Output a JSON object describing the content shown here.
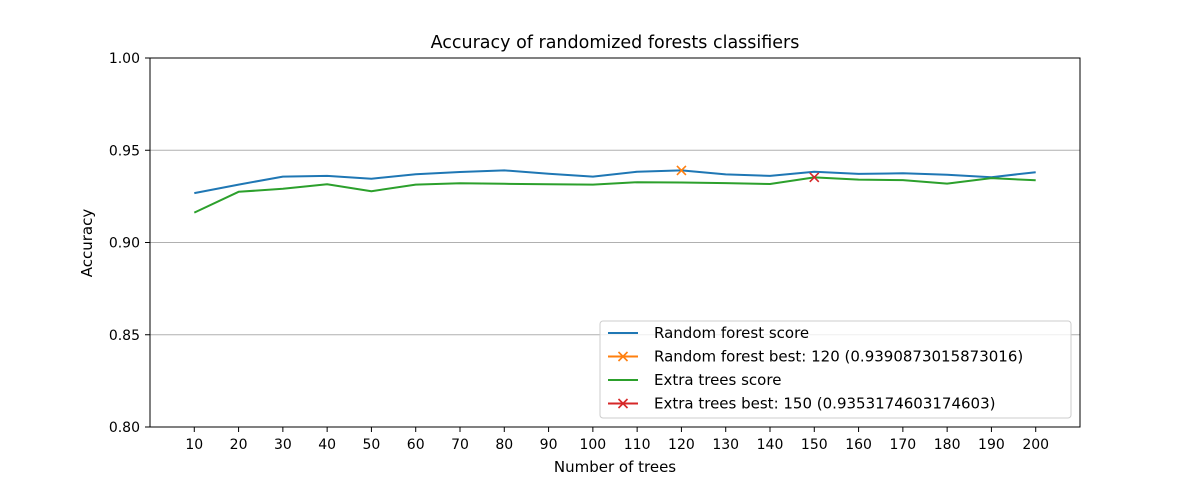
{
  "chart_data": {
    "type": "line",
    "title": "Accuracy of randomized forests classifiers",
    "xlabel": "Number of trees",
    "ylabel": "Accuracy",
    "x": [
      10,
      20,
      30,
      40,
      50,
      60,
      70,
      80,
      90,
      100,
      110,
      120,
      130,
      140,
      150,
      160,
      170,
      180,
      190,
      200
    ],
    "xlim": [
      0,
      210
    ],
    "ylim": [
      0.8,
      1.0
    ],
    "yticks": [
      "0.80",
      "0.85",
      "0.90",
      "0.95",
      "1.00"
    ],
    "grid": "horizontal",
    "legend_position": "lower-right",
    "series": [
      {
        "name": "Random forest score",
        "color": "#1f77b4",
        "values": [
          0.9268,
          0.9314,
          0.9357,
          0.9361,
          0.9346,
          0.937,
          0.9382,
          0.9391,
          0.9373,
          0.9357,
          0.9384,
          0.9391,
          0.9369,
          0.9361,
          0.9384,
          0.9372,
          0.9375,
          0.9367,
          0.9354,
          0.9381
        ]
      },
      {
        "name": "Extra trees score",
        "color": "#2ca02c",
        "values": [
          0.9162,
          0.9275,
          0.9291,
          0.9316,
          0.9278,
          0.9314,
          0.9321,
          0.9318,
          0.9316,
          0.9314,
          0.9327,
          0.9325,
          0.9322,
          0.9317,
          0.9353,
          0.9341,
          0.9338,
          0.9319,
          0.9349,
          0.9337
        ]
      }
    ],
    "markers": [
      {
        "name": "Random forest best: 120 (0.9390873015873016)",
        "x": 120,
        "y": 0.9390873015873016,
        "color": "#ff7f0e"
      },
      {
        "name": "Extra trees best: 150 (0.9353174603174603)",
        "x": 150,
        "y": 0.9353174603174603,
        "color": "#d62728"
      }
    ]
  }
}
